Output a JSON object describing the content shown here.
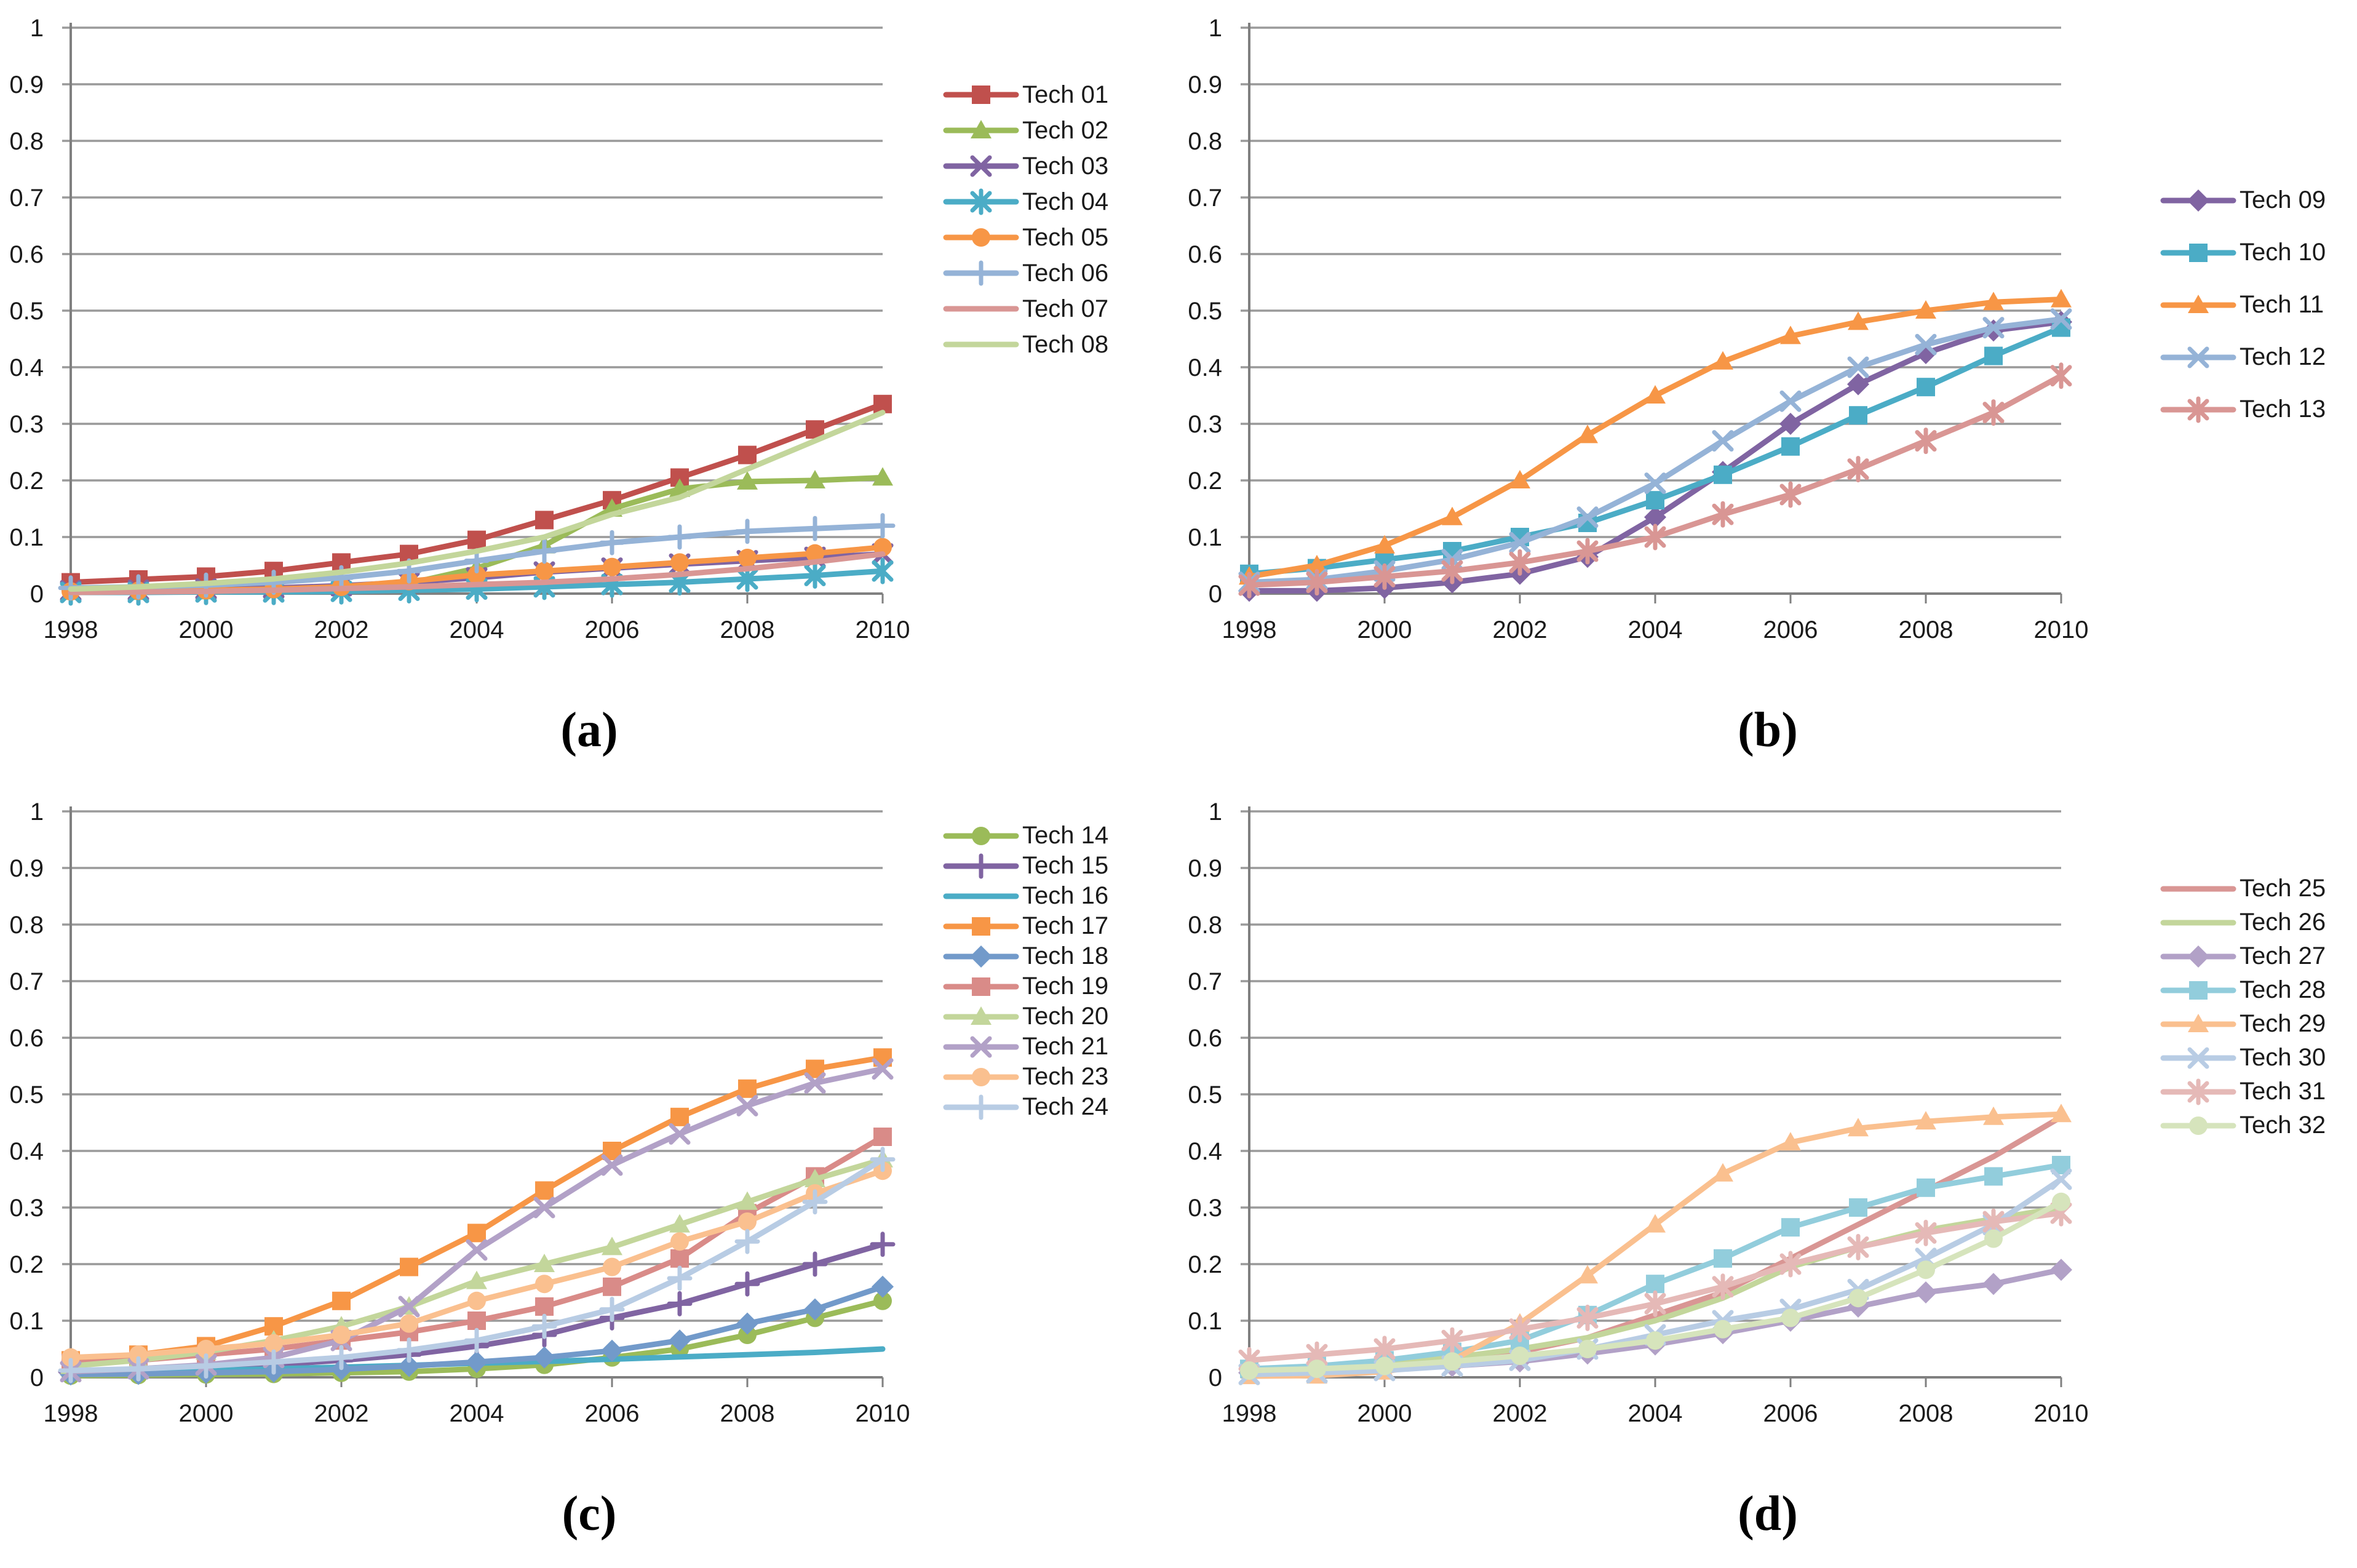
{
  "page": {
    "background": "#ffffff",
    "gridline_color": "#9a9a9a",
    "axis_color": "#808080",
    "text_color": "#1a1a1a"
  },
  "chart_data": [
    {
      "id": "a",
      "caption": "(a)",
      "type": "line",
      "x": [
        1998,
        1999,
        2000,
        2001,
        2002,
        2003,
        2004,
        2005,
        2006,
        2007,
        2008,
        2009,
        2010
      ],
      "x_tick_labels": [
        "1998",
        "2000",
        "2002",
        "2004",
        "2006",
        "2008",
        "2010"
      ],
      "y_tick_labels": [
        "0",
        "0.1",
        "0.2",
        "0.3",
        "0.4",
        "0.5",
        "0.6",
        "0.7",
        "0.8",
        "0.9",
        "1"
      ],
      "ylim": [
        0,
        1
      ],
      "grid": true,
      "legend_position": "right",
      "series": [
        {
          "name": "Tech 01",
          "color": "#C0504D",
          "marker": "square",
          "values": [
            0.02,
            0.025,
            0.03,
            0.04,
            0.055,
            0.07,
            0.095,
            0.13,
            0.165,
            0.205,
            0.245,
            0.29,
            0.335
          ]
        },
        {
          "name": "Tech 02",
          "color": "#9BBB59",
          "marker": "triangle",
          "values": [
            0.003,
            0.003,
            0.004,
            0.006,
            0.01,
            0.018,
            0.045,
            0.085,
            0.15,
            0.185,
            0.198,
            0.2,
            0.205
          ]
        },
        {
          "name": "Tech 03",
          "color": "#8064A2",
          "marker": "x",
          "values": [
            0.005,
            0.006,
            0.008,
            0.01,
            0.014,
            0.02,
            0.028,
            0.038,
            0.045,
            0.052,
            0.058,
            0.064,
            0.07
          ]
        },
        {
          "name": "Tech 04",
          "color": "#4BACC6",
          "marker": "asterisk",
          "values": [
            0.002,
            0.002,
            0.003,
            0.003,
            0.004,
            0.006,
            0.008,
            0.012,
            0.016,
            0.02,
            0.026,
            0.032,
            0.04
          ]
        },
        {
          "name": "Tech 05",
          "color": "#F79646",
          "marker": "circle",
          "values": [
            0.004,
            0.005,
            0.006,
            0.008,
            0.012,
            0.022,
            0.033,
            0.04,
            0.047,
            0.055,
            0.063,
            0.071,
            0.082
          ]
        },
        {
          "name": "Tech 06",
          "color": "#95B3D7",
          "marker": "plus",
          "values": [
            0.01,
            0.012,
            0.015,
            0.02,
            0.028,
            0.04,
            0.058,
            0.075,
            0.09,
            0.1,
            0.11,
            0.115,
            0.12
          ]
        },
        {
          "name": "Tech 07",
          "color": "#D99694",
          "marker": "none",
          "values": [
            0.002,
            0.003,
            0.004,
            0.006,
            0.009,
            0.012,
            0.016,
            0.02,
            0.026,
            0.034,
            0.044,
            0.056,
            0.07
          ]
        },
        {
          "name": "Tech 08",
          "color": "#C3D69B",
          "marker": "none",
          "values": [
            0.008,
            0.012,
            0.018,
            0.026,
            0.038,
            0.054,
            0.075,
            0.1,
            0.14,
            0.17,
            0.22,
            0.27,
            0.32
          ]
        }
      ]
    },
    {
      "id": "b",
      "caption": "(b)",
      "type": "line",
      "x": [
        1998,
        1999,
        2000,
        2001,
        2002,
        2003,
        2004,
        2005,
        2006,
        2007,
        2008,
        2009,
        2010
      ],
      "x_tick_labels": [
        "1998",
        "2000",
        "2002",
        "2004",
        "2006",
        "2008",
        "2010"
      ],
      "y_tick_labels": [
        "0",
        "0.1",
        "0.2",
        "0.3",
        "0.4",
        "0.5",
        "0.6",
        "0.7",
        "0.8",
        "0.9",
        "1"
      ],
      "ylim": [
        0,
        1
      ],
      "grid": true,
      "legend_position": "right",
      "series": [
        {
          "name": "Tech 09",
          "color": "#8064A2",
          "marker": "diamond",
          "values": [
            0.005,
            0.005,
            0.01,
            0.02,
            0.035,
            0.065,
            0.135,
            0.215,
            0.3,
            0.37,
            0.425,
            0.465,
            0.48
          ]
        },
        {
          "name": "Tech 10",
          "color": "#4BACC6",
          "marker": "square",
          "values": [
            0.035,
            0.045,
            0.06,
            0.075,
            0.1,
            0.125,
            0.165,
            0.21,
            0.26,
            0.315,
            0.365,
            0.42,
            0.47
          ]
        },
        {
          "name": "Tech 11",
          "color": "#F79646",
          "marker": "triangle",
          "values": [
            0.03,
            0.05,
            0.085,
            0.135,
            0.2,
            0.28,
            0.35,
            0.41,
            0.455,
            0.48,
            0.5,
            0.515,
            0.52
          ]
        },
        {
          "name": "Tech 12",
          "color": "#95B3D7",
          "marker": "x",
          "values": [
            0.02,
            0.025,
            0.04,
            0.06,
            0.09,
            0.135,
            0.195,
            0.27,
            0.34,
            0.4,
            0.44,
            0.47,
            0.485
          ]
        },
        {
          "name": "Tech 13",
          "color": "#D99694",
          "marker": "asterisk",
          "values": [
            0.015,
            0.02,
            0.03,
            0.04,
            0.055,
            0.075,
            0.1,
            0.14,
            0.175,
            0.22,
            0.27,
            0.32,
            0.385
          ]
        }
      ]
    },
    {
      "id": "c",
      "caption": "(c)",
      "type": "line",
      "x": [
        1998,
        1999,
        2000,
        2001,
        2002,
        2003,
        2004,
        2005,
        2006,
        2007,
        2008,
        2009,
        2010
      ],
      "x_tick_labels": [
        "1998",
        "2000",
        "2002",
        "2004",
        "2006",
        "2008",
        "2010"
      ],
      "y_tick_labels": [
        "0",
        "0.1",
        "0.2",
        "0.3",
        "0.4",
        "0.5",
        "0.6",
        "0.7",
        "0.8",
        "0.9",
        "1"
      ],
      "ylim": [
        0,
        1
      ],
      "grid": true,
      "legend_position": "right",
      "series": [
        {
          "name": "Tech 14",
          "color": "#9BBB59",
          "marker": "circle",
          "values": [
            0.003,
            0.004,
            0.005,
            0.006,
            0.008,
            0.01,
            0.015,
            0.022,
            0.035,
            0.05,
            0.075,
            0.105,
            0.135
          ]
        },
        {
          "name": "Tech 15",
          "color": "#8064A2",
          "marker": "plus",
          "values": [
            0.01,
            0.012,
            0.016,
            0.022,
            0.03,
            0.04,
            0.055,
            0.075,
            0.105,
            0.13,
            0.165,
            0.2,
            0.235
          ]
        },
        {
          "name": "Tech 16",
          "color": "#4BACC6",
          "marker": "none",
          "values": [
            0.008,
            0.01,
            0.012,
            0.015,
            0.018,
            0.021,
            0.025,
            0.028,
            0.032,
            0.036,
            0.04,
            0.044,
            0.05
          ]
        },
        {
          "name": "Tech 17",
          "color": "#F79646",
          "marker": "square",
          "values": [
            0.03,
            0.04,
            0.055,
            0.09,
            0.135,
            0.195,
            0.255,
            0.33,
            0.4,
            0.46,
            0.51,
            0.545,
            0.565
          ]
        },
        {
          "name": "Tech 18",
          "color": "#729ACA",
          "marker": "diamond",
          "values": [
            0.005,
            0.006,
            0.008,
            0.01,
            0.014,
            0.02,
            0.027,
            0.035,
            0.047,
            0.065,
            0.095,
            0.12,
            0.16
          ]
        },
        {
          "name": "Tech 19",
          "color": "#D98B88",
          "marker": "square",
          "values": [
            0.025,
            0.03,
            0.04,
            0.05,
            0.065,
            0.08,
            0.1,
            0.125,
            0.16,
            0.21,
            0.29,
            0.355,
            0.425
          ]
        },
        {
          "name": "Tech 20",
          "color": "#C3D69B",
          "marker": "triangle",
          "values": [
            0.02,
            0.03,
            0.045,
            0.065,
            0.09,
            0.125,
            0.17,
            0.2,
            0.23,
            0.27,
            0.31,
            0.35,
            0.385
          ]
        },
        {
          "name": "Tech 21",
          "color": "#B2A1C7",
          "marker": "x",
          "values": [
            0.01,
            0.015,
            0.022,
            0.035,
            0.065,
            0.125,
            0.225,
            0.3,
            0.375,
            0.43,
            0.48,
            0.52,
            0.545
          ]
        },
        {
          "name": "Tech 23",
          "color": "#FAC08F",
          "marker": "circle",
          "values": [
            0.035,
            0.04,
            0.05,
            0.06,
            0.075,
            0.095,
            0.135,
            0.165,
            0.195,
            0.24,
            0.275,
            0.325,
            0.365
          ]
        },
        {
          "name": "Tech 24",
          "color": "#B8CCE4",
          "marker": "plus",
          "values": [
            0.012,
            0.015,
            0.02,
            0.027,
            0.035,
            0.048,
            0.065,
            0.09,
            0.12,
            0.175,
            0.24,
            0.31,
            0.385
          ]
        }
      ]
    },
    {
      "id": "d",
      "caption": "(d)",
      "type": "line",
      "x": [
        1998,
        1999,
        2000,
        2001,
        2002,
        2003,
        2004,
        2005,
        2006,
        2007,
        2008,
        2009,
        2010
      ],
      "x_tick_labels": [
        "1998",
        "2000",
        "2002",
        "2004",
        "2006",
        "2008",
        "2010"
      ],
      "y_tick_labels": [
        "0",
        "0.1",
        "0.2",
        "0.3",
        "0.4",
        "0.5",
        "0.6",
        "0.7",
        "0.8",
        "0.9",
        "1"
      ],
      "ylim": [
        0,
        1
      ],
      "grid": true,
      "legend_position": "right",
      "series": [
        {
          "name": "Tech 25",
          "color": "#D99694",
          "marker": "none",
          "values": [
            0.01,
            0.013,
            0.018,
            0.028,
            0.045,
            0.07,
            0.11,
            0.15,
            0.21,
            0.27,
            0.33,
            0.39,
            0.46
          ]
        },
        {
          "name": "Tech 26",
          "color": "#C3D69B",
          "marker": "none",
          "values": [
            0.015,
            0.018,
            0.025,
            0.035,
            0.05,
            0.07,
            0.1,
            0.14,
            0.195,
            0.23,
            0.26,
            0.28,
            0.3
          ]
        },
        {
          "name": "Tech 27",
          "color": "#B2A1C7",
          "marker": "diamond",
          "values": [
            0.008,
            0.01,
            0.014,
            0.02,
            0.028,
            0.042,
            0.058,
            0.078,
            0.1,
            0.125,
            0.15,
            0.165,
            0.19
          ]
        },
        {
          "name": "Tech 28",
          "color": "#92CDDC",
          "marker": "square",
          "values": [
            0.015,
            0.02,
            0.03,
            0.045,
            0.065,
            0.11,
            0.165,
            0.21,
            0.265,
            0.3,
            0.335,
            0.355,
            0.375
          ]
        },
        {
          "name": "Tech 29",
          "color": "#FAC08F",
          "marker": "triangle",
          "values": [
            0.002,
            0.003,
            0.01,
            0.03,
            0.095,
            0.18,
            0.27,
            0.36,
            0.415,
            0.44,
            0.452,
            0.46,
            0.465
          ]
        },
        {
          "name": "Tech 30",
          "color": "#B8CCE4",
          "marker": "x",
          "values": [
            0.005,
            0.008,
            0.012,
            0.02,
            0.03,
            0.05,
            0.075,
            0.1,
            0.12,
            0.155,
            0.21,
            0.27,
            0.35
          ]
        },
        {
          "name": "Tech 31",
          "color": "#E5B9B7",
          "marker": "asterisk",
          "values": [
            0.03,
            0.04,
            0.05,
            0.065,
            0.085,
            0.105,
            0.13,
            0.16,
            0.2,
            0.23,
            0.255,
            0.275,
            0.29
          ]
        },
        {
          "name": "Tech 32",
          "color": "#D6E4BC",
          "marker": "circle",
          "values": [
            0.012,
            0.015,
            0.02,
            0.028,
            0.038,
            0.05,
            0.065,
            0.085,
            0.105,
            0.14,
            0.19,
            0.245,
            0.31
          ]
        }
      ]
    }
  ]
}
